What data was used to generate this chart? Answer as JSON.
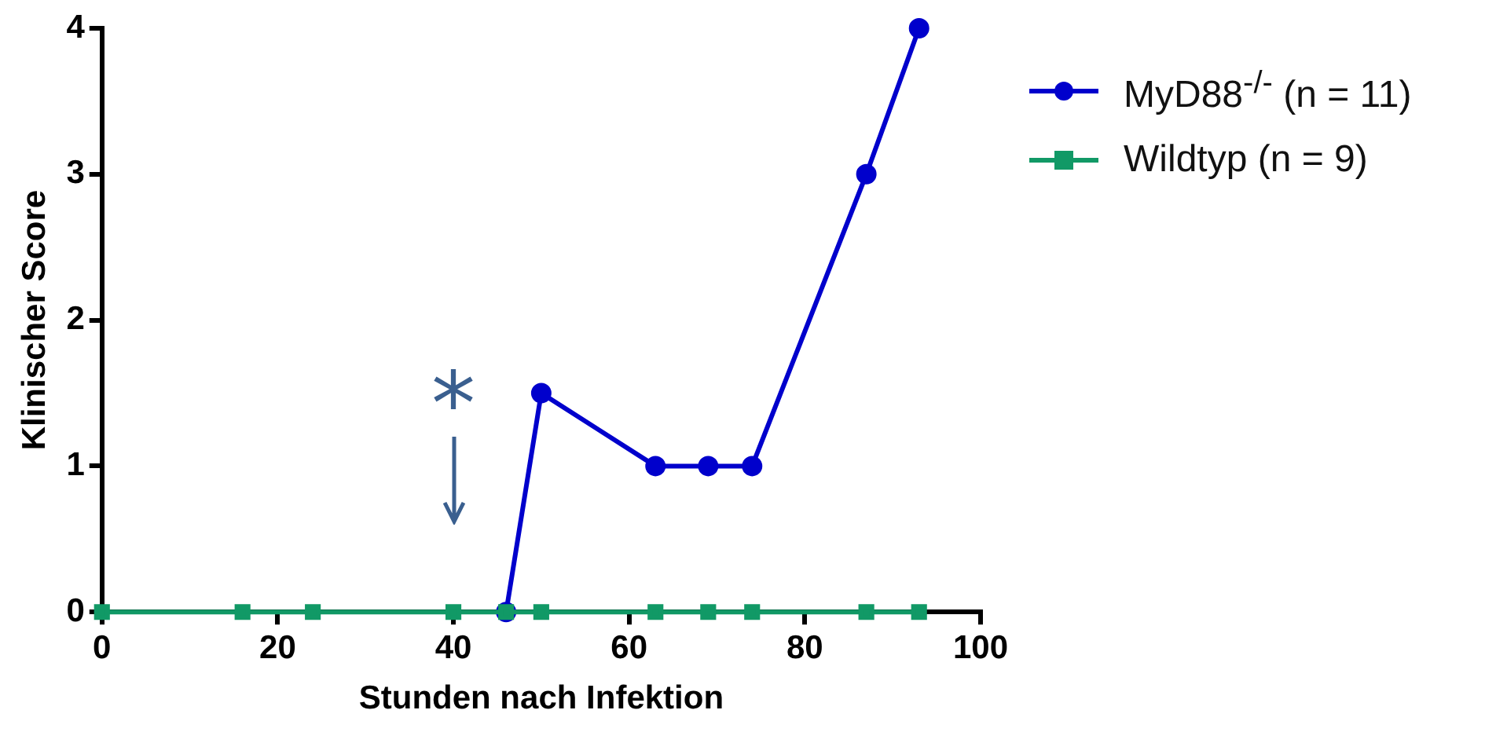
{
  "chart_data": {
    "type": "line",
    "xlabel": "Stunden nach Infektion",
    "ylabel": "Klinischer Score",
    "xlim": [
      0,
      100
    ],
    "xticks": [
      0,
      20,
      40,
      60,
      80,
      100
    ],
    "ylim": [
      0,
      4
    ],
    "yticks": [
      0,
      1,
      2,
      3,
      4
    ],
    "grid": false,
    "legend": "right",
    "line_style": "solid",
    "annotations": [
      "*"
    ],
    "series": [
      {
        "name": "MyD88$^{-/-}$ (n = 11)",
        "color": "#0000cc",
        "marker": "circle",
        "x": [
          46,
          50,
          63,
          69,
          74,
          87,
          93
        ],
        "values": [
          0,
          1.5,
          1,
          1,
          1,
          3,
          4
        ]
      },
      {
        "name": "Wildtyp (n = 9)",
        "color": "#119966",
        "marker": "square",
        "x": [
          0,
          16,
          24,
          40,
          46,
          50,
          63,
          69,
          74,
          87,
          93
        ],
        "values": [
          0,
          0,
          0,
          0,
          0,
          0,
          0,
          0,
          0,
          0,
          0
        ]
      }
    ]
  }
}
